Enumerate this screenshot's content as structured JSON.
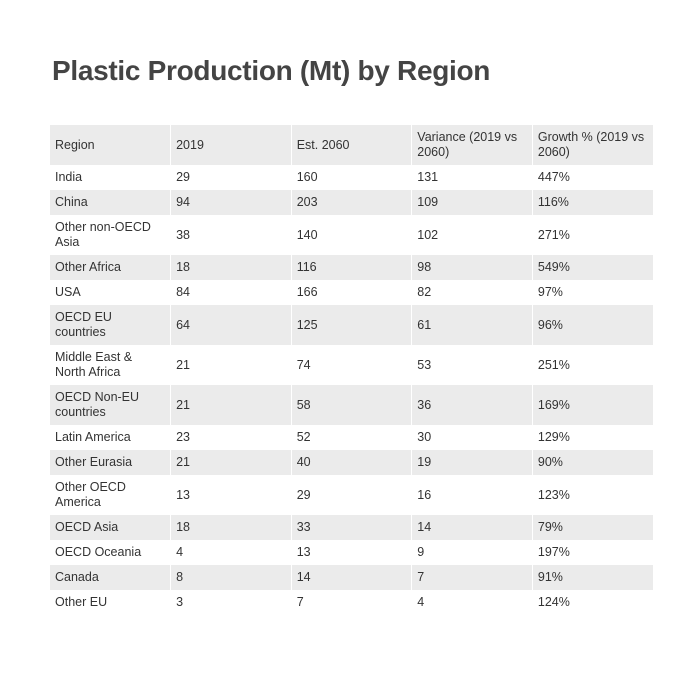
{
  "header": {
    "title": "Plastic Production (Mt) by Region"
  },
  "table": {
    "columns": [
      "Region",
      "2019",
      "Est. 2060",
      "Variance (2019 vs 2060)",
      "Growth % (2019 vs 2060)"
    ],
    "rows": [
      [
        "India",
        "29",
        "160",
        "131",
        "447%"
      ],
      [
        "China",
        "94",
        "203",
        "109",
        "116%"
      ],
      [
        "Other non-OECD Asia",
        "38",
        "140",
        "102",
        "271%"
      ],
      [
        "Other Africa",
        "18",
        "116",
        "98",
        "549%"
      ],
      [
        "USA",
        "84",
        "166",
        "82",
        "97%"
      ],
      [
        "OECD EU countries",
        "64",
        "125",
        "61",
        "96%"
      ],
      [
        "Middle East & North Africa",
        "21",
        "74",
        "53",
        "251%"
      ],
      [
        "OECD Non-EU countries",
        "21",
        "58",
        "36",
        "169%"
      ],
      [
        "Latin America",
        "23",
        "52",
        "30",
        "129%"
      ],
      [
        "Other Eurasia",
        "21",
        "40",
        "19",
        "90%"
      ],
      [
        "Other OECD America",
        "13",
        "29",
        "16",
        "123%"
      ],
      [
        "OECD Asia",
        "18",
        "33",
        "14",
        "79%"
      ],
      [
        "OECD Oceania",
        "4",
        "13",
        "9",
        "197%"
      ],
      [
        "Canada",
        "8",
        "14",
        "7",
        "91%"
      ],
      [
        "Other EU",
        "3",
        "7",
        "4",
        "124%"
      ]
    ]
  }
}
